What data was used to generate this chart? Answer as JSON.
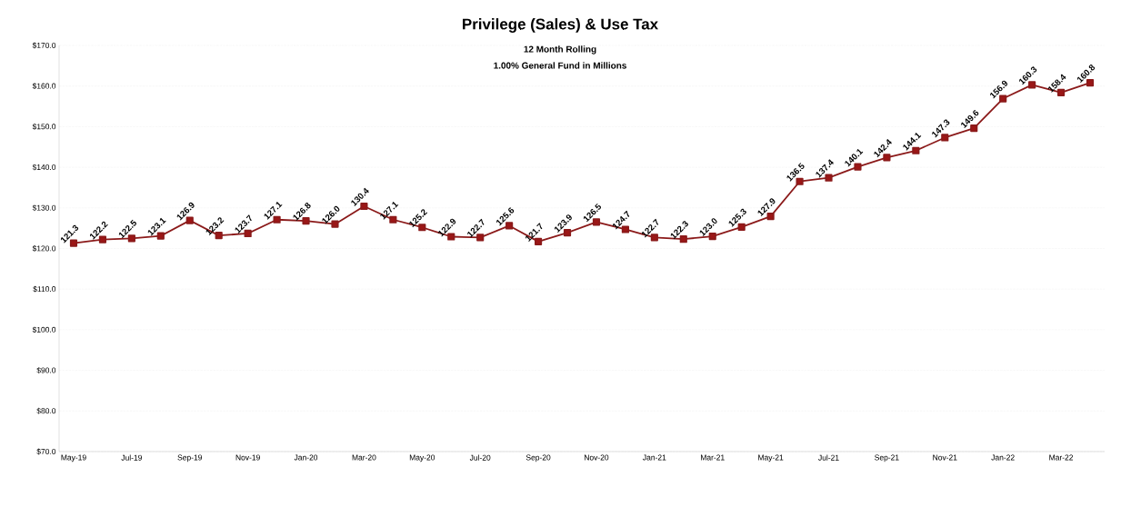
{
  "chart_data": {
    "type": "line",
    "title": "Privilege (Sales) & Use Tax",
    "subtitle": "12 Month Rolling",
    "annotations": [
      "1.00% General Fund in Millions"
    ],
    "categories": [
      "May-19",
      null,
      "Jul-19",
      null,
      "Sep-19",
      null,
      "Nov-19",
      null,
      "Jan-20",
      null,
      "Mar-20",
      null,
      "May-20",
      null,
      "Jul-20",
      null,
      "Sep-20",
      null,
      "Nov-20",
      null,
      "Jan-21",
      null,
      "Mar-21",
      null,
      "May-21",
      null,
      "Jul-21",
      null,
      "Sep-21",
      null,
      "Nov-21",
      null,
      "Jan-22",
      null,
      "Mar-22",
      null
    ],
    "values": [
      121.3,
      122.2,
      122.5,
      123.1,
      126.9,
      123.2,
      123.7,
      127.1,
      126.8,
      126.0,
      130.4,
      127.1,
      125.2,
      122.9,
      122.7,
      125.6,
      121.7,
      123.9,
      126.5,
      124.7,
      122.7,
      122.3,
      123.0,
      125.3,
      127.9,
      136.5,
      137.4,
      140.1,
      142.4,
      144.1,
      147.3,
      149.6,
      156.9,
      160.3,
      158.4,
      160.8
    ],
    "value_labels": [
      "121.3",
      "122.2",
      "122.5",
      "123.1",
      "126.9",
      "123.2",
      "123.7",
      "127.1",
      "126.8",
      "126.0",
      "130.4",
      "127.1",
      "125.2",
      "122.9",
      "122.7",
      "125.6",
      "121.7",
      "123.9",
      "126.5",
      "124.7",
      "122.7",
      "122.3",
      "123.0",
      "125.3",
      "127.9",
      "136.5",
      "137.4",
      "140.1",
      "142.4",
      "144.1",
      "147.3",
      "149.6",
      "156.9",
      "160.3",
      "158.4",
      "160.8"
    ],
    "color": "#8b1a1a",
    "marker": "square",
    "grid": "y",
    "ylim": [
      70,
      170
    ],
    "yticks": [
      {
        "value": 70,
        "label": "$70.0"
      },
      {
        "value": 80,
        "label": "$80.0"
      },
      {
        "value": 90,
        "label": "$90.0"
      },
      {
        "value": 100,
        "label": "$100.0"
      },
      {
        "value": 110,
        "label": "$110.0"
      },
      {
        "value": 120,
        "label": "$120.0"
      },
      {
        "value": 130,
        "label": "$130.0"
      },
      {
        "value": 140,
        "label": "$140.0"
      },
      {
        "value": 150,
        "label": "$150.0"
      },
      {
        "value": 160,
        "label": "$160.0"
      },
      {
        "value": 170,
        "label": "$170.0"
      }
    ]
  }
}
